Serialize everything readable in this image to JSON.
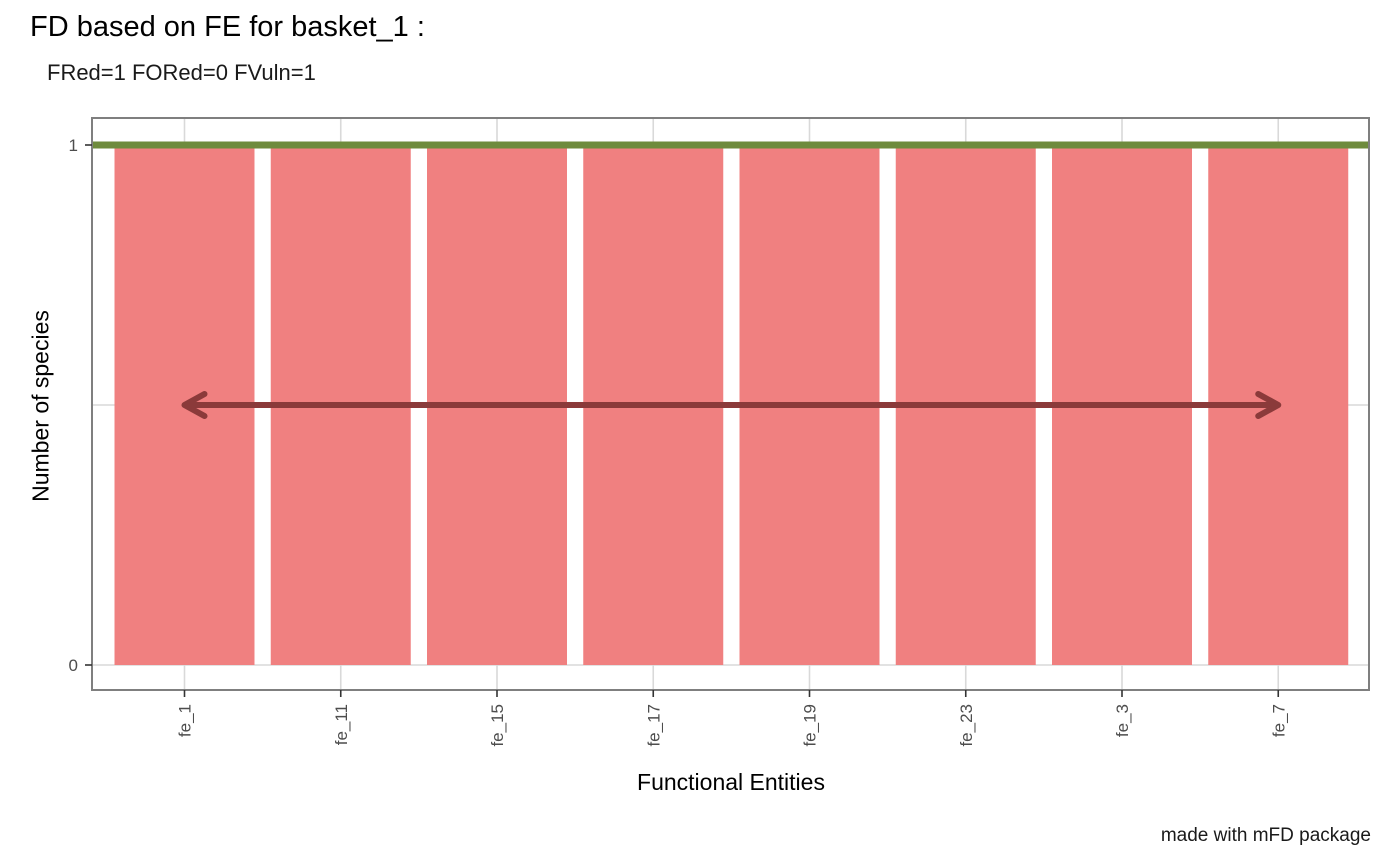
{
  "chart_data": {
    "type": "bar",
    "title": "FD based on FE for basket_1 :",
    "subtitle": "FRed=1  FORed=0  FVuln=1",
    "caption": "made with mFD package",
    "xlabel": "Functional Entities",
    "ylabel": "Number of species",
    "categories": [
      "fe_1",
      "fe_11",
      "fe_15",
      "fe_17",
      "fe_19",
      "fe_23",
      "fe_3",
      "fe_7"
    ],
    "values": [
      1,
      1,
      1,
      1,
      1,
      1,
      1,
      1
    ],
    "ylim": [
      0,
      1
    ],
    "yticks": [
      0,
      1
    ],
    "grid": true,
    "bar_color": "#F08080",
    "hline": {
      "y": 1,
      "color": "#6E8B3D"
    },
    "arrow": {
      "y": 0.5,
      "from": "fe_1",
      "to": "fe_7",
      "color": "#8B3A3A"
    }
  }
}
